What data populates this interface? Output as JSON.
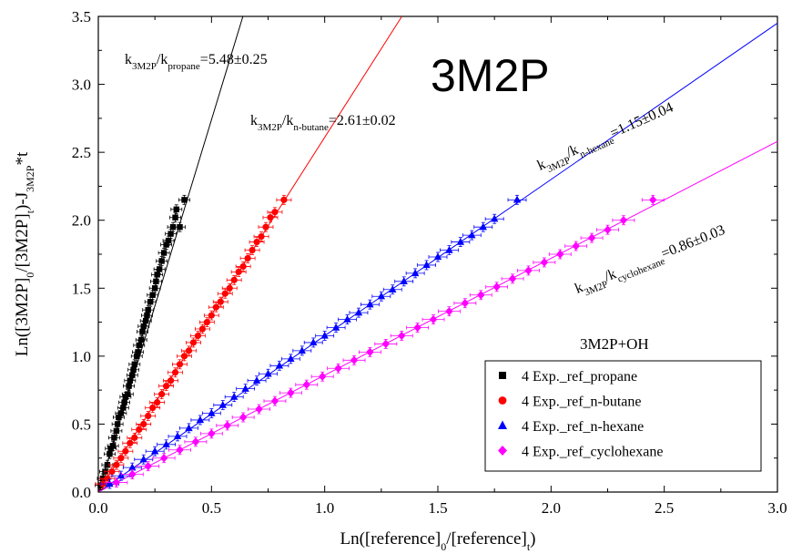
{
  "chart_data": {
    "type": "scatter",
    "big_label": "3M2P",
    "xlabel": {
      "main": "Ln([reference]",
      "sub1": "0",
      "mid": "/[reference]",
      "sub2": "t",
      "end": ")"
    },
    "ylabel": {
      "p1": "Ln([3M2P]",
      "s1": "0",
      "p2": "/[3M2P]",
      "s2": "t",
      "p3": ")-J",
      "s3": "3M2P",
      "p4": "*t"
    },
    "xlim": [
      0.0,
      3.0
    ],
    "ylim": [
      0.0,
      3.5
    ],
    "x_ticks": [
      "0.0",
      "0.5",
      "1.0",
      "1.5",
      "2.0",
      "2.5",
      "3.0"
    ],
    "y_ticks": [
      "0.0",
      "0.5",
      "1.0",
      "1.5",
      "2.0",
      "2.5",
      "3.0",
      "3.5"
    ],
    "legend_title": "3M2P+OH",
    "series": [
      {
        "name": "4 Exp._ref_propane",
        "color": "#000000",
        "marker": "square",
        "slope": 5.48,
        "annotation": {
          "k": "k",
          "s1": "3M2P",
          "mid": "/k",
          "s2": "propane",
          "val": "=5.48±0.25"
        },
        "points": [
          [
            0.01,
            0.05
          ],
          [
            0.02,
            0.1
          ],
          [
            0.03,
            0.15
          ],
          [
            0.04,
            0.2
          ],
          [
            0.05,
            0.28
          ],
          [
            0.055,
            0.32
          ],
          [
            0.065,
            0.34
          ],
          [
            0.07,
            0.4
          ],
          [
            0.08,
            0.45
          ],
          [
            0.085,
            0.5
          ],
          [
            0.09,
            0.55
          ],
          [
            0.1,
            0.58
          ],
          [
            0.11,
            0.62
          ],
          [
            0.115,
            0.66
          ],
          [
            0.12,
            0.7
          ],
          [
            0.13,
            0.72
          ],
          [
            0.135,
            0.78
          ],
          [
            0.14,
            0.82
          ],
          [
            0.15,
            0.86
          ],
          [
            0.155,
            0.9
          ],
          [
            0.16,
            0.94
          ],
          [
            0.17,
            1.0
          ],
          [
            0.175,
            1.03
          ],
          [
            0.18,
            1.08
          ],
          [
            0.19,
            1.12
          ],
          [
            0.195,
            1.18
          ],
          [
            0.2,
            1.22
          ],
          [
            0.21,
            1.26
          ],
          [
            0.215,
            1.3
          ],
          [
            0.22,
            1.34
          ],
          [
            0.23,
            1.4
          ],
          [
            0.24,
            1.45
          ],
          [
            0.25,
            1.5
          ],
          [
            0.255,
            1.55
          ],
          [
            0.26,
            1.6
          ],
          [
            0.27,
            1.64
          ],
          [
            0.28,
            1.7
          ],
          [
            0.29,
            1.76
          ],
          [
            0.3,
            1.82
          ],
          [
            0.31,
            1.85
          ],
          [
            0.32,
            1.9
          ],
          [
            0.33,
            1.95
          ],
          [
            0.34,
            2.02
          ],
          [
            0.345,
            2.08
          ],
          [
            0.36,
            1.95
          ],
          [
            0.38,
            2.15
          ]
        ]
      },
      {
        "name": "4 Exp._ref_n-butane",
        "color": "#ff0000",
        "marker": "circle",
        "slope": 2.61,
        "annotation": {
          "k": "k",
          "s1": "3M2P",
          "mid": "/k",
          "s2": "n-butane",
          "val": "=2.61±0.02"
        },
        "points": [
          [
            0.02,
            0.06
          ],
          [
            0.04,
            0.1
          ],
          [
            0.06,
            0.15
          ],
          [
            0.08,
            0.2
          ],
          [
            0.1,
            0.25
          ],
          [
            0.12,
            0.3
          ],
          [
            0.14,
            0.36
          ],
          [
            0.16,
            0.4
          ],
          [
            0.18,
            0.46
          ],
          [
            0.2,
            0.5
          ],
          [
            0.22,
            0.56
          ],
          [
            0.24,
            0.62
          ],
          [
            0.26,
            0.66
          ],
          [
            0.28,
            0.72
          ],
          [
            0.3,
            0.78
          ],
          [
            0.32,
            0.82
          ],
          [
            0.34,
            0.88
          ],
          [
            0.36,
            0.94
          ],
          [
            0.38,
            1.0
          ],
          [
            0.4,
            1.04
          ],
          [
            0.42,
            1.1
          ],
          [
            0.44,
            1.15
          ],
          [
            0.46,
            1.2
          ],
          [
            0.48,
            1.25
          ],
          [
            0.5,
            1.3
          ],
          [
            0.52,
            1.36
          ],
          [
            0.54,
            1.4
          ],
          [
            0.56,
            1.46
          ],
          [
            0.58,
            1.5
          ],
          [
            0.6,
            1.56
          ],
          [
            0.62,
            1.62
          ],
          [
            0.64,
            1.66
          ],
          [
            0.66,
            1.72
          ],
          [
            0.68,
            1.78
          ],
          [
            0.7,
            1.84
          ],
          [
            0.72,
            1.88
          ],
          [
            0.74,
            1.95
          ],
          [
            0.76,
            2.02
          ],
          [
            0.78,
            2.06
          ],
          [
            0.82,
            2.15
          ]
        ]
      },
      {
        "name": "4 Exp._ref_n-hexane",
        "color": "#0000ff",
        "marker": "triangle",
        "slope": 1.15,
        "annotation": {
          "k": "k",
          "s1": "3M2P",
          "mid": "/k",
          "s2": "n-hexane",
          "val": "=1.15±0.04"
        },
        "points": [
          [
            0.05,
            0.06
          ],
          [
            0.1,
            0.12
          ],
          [
            0.15,
            0.18
          ],
          [
            0.2,
            0.24
          ],
          [
            0.25,
            0.3
          ],
          [
            0.3,
            0.35
          ],
          [
            0.35,
            0.41
          ],
          [
            0.4,
            0.47
          ],
          [
            0.45,
            0.53
          ],
          [
            0.5,
            0.58
          ],
          [
            0.55,
            0.64
          ],
          [
            0.6,
            0.7
          ],
          [
            0.65,
            0.76
          ],
          [
            0.7,
            0.82
          ],
          [
            0.75,
            0.87
          ],
          [
            0.8,
            0.93
          ],
          [
            0.85,
            0.98
          ],
          [
            0.9,
            1.04
          ],
          [
            0.95,
            1.1
          ],
          [
            1.0,
            1.15
          ],
          [
            1.05,
            1.21
          ],
          [
            1.1,
            1.27
          ],
          [
            1.15,
            1.32
          ],
          [
            1.2,
            1.38
          ],
          [
            1.25,
            1.44
          ],
          [
            1.3,
            1.49
          ],
          [
            1.35,
            1.55
          ],
          [
            1.4,
            1.61
          ],
          [
            1.45,
            1.67
          ],
          [
            1.5,
            1.73
          ],
          [
            1.55,
            1.78
          ],
          [
            1.6,
            1.84
          ],
          [
            1.65,
            1.89
          ],
          [
            1.7,
            1.95
          ],
          [
            1.75,
            2.01
          ],
          [
            1.85,
            2.15
          ]
        ]
      },
      {
        "name": "4 Exp._ref_cyclohexane",
        "color": "#ff00ff",
        "marker": "diamond",
        "slope": 0.86,
        "annotation": {
          "k": "k",
          "s1": "3M2P",
          "mid": "/k",
          "s2": "cyclohexane",
          "val": "=0.86±0.03"
        },
        "points": [
          [
            0.08,
            0.07
          ],
          [
            0.15,
            0.13
          ],
          [
            0.22,
            0.19
          ],
          [
            0.29,
            0.25
          ],
          [
            0.36,
            0.31
          ],
          [
            0.43,
            0.37
          ],
          [
            0.5,
            0.43
          ],
          [
            0.57,
            0.49
          ],
          [
            0.64,
            0.55
          ],
          [
            0.71,
            0.61
          ],
          [
            0.78,
            0.67
          ],
          [
            0.85,
            0.73
          ],
          [
            0.92,
            0.79
          ],
          [
            0.99,
            0.85
          ],
          [
            1.06,
            0.91
          ],
          [
            1.13,
            0.97
          ],
          [
            1.2,
            1.03
          ],
          [
            1.27,
            1.09
          ],
          [
            1.34,
            1.15
          ],
          [
            1.41,
            1.21
          ],
          [
            1.48,
            1.27
          ],
          [
            1.55,
            1.33
          ],
          [
            1.62,
            1.39
          ],
          [
            1.69,
            1.45
          ],
          [
            1.76,
            1.51
          ],
          [
            1.83,
            1.57
          ],
          [
            1.9,
            1.63
          ],
          [
            1.97,
            1.69
          ],
          [
            2.04,
            1.75
          ],
          [
            2.11,
            1.81
          ],
          [
            2.18,
            1.87
          ],
          [
            2.25,
            1.93
          ],
          [
            2.32,
            2.0
          ],
          [
            2.45,
            2.15
          ]
        ]
      }
    ]
  }
}
